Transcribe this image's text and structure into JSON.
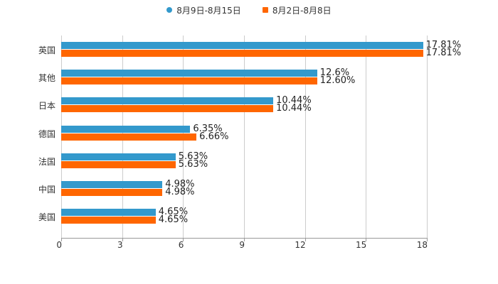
{
  "legend": [
    {
      "label": "8月9日-8月15日",
      "color": "#3399cc",
      "shape": "circle"
    },
    {
      "label": "8月2日-8月8日",
      "color": "#ff6600",
      "shape": "square"
    }
  ],
  "chart_data": {
    "type": "bar",
    "orientation": "horizontal",
    "title": "",
    "xlabel": "",
    "ylabel": "",
    "categories": [
      "英国",
      "其他",
      "日本",
      "德国",
      "法国",
      "中国",
      "美国"
    ],
    "series": [
      {
        "name": "8月9日-8月15日",
        "color": "#3399cc",
        "values": [
          17.81,
          12.6,
          10.44,
          6.35,
          5.63,
          4.98,
          4.65
        ],
        "labels": [
          "17.81%",
          "12.6%",
          "10.44%",
          "6.35%",
          "5.63%",
          "4.98%",
          "4.65%"
        ]
      },
      {
        "name": "8月2日-8月8日",
        "color": "#ff6600",
        "values": [
          17.81,
          12.6,
          10.44,
          6.66,
          5.63,
          4.98,
          4.65
        ],
        "labels": [
          "17.81%",
          "12.60%",
          "10.44%",
          "6.66%",
          "5.63%",
          "4.98%",
          "4.65%"
        ]
      }
    ],
    "xlim": [
      0,
      18
    ],
    "xticks": [
      "0",
      "3",
      "6",
      "9",
      "12",
      "15",
      "18"
    ],
    "grid": true,
    "legend_position": "top"
  }
}
